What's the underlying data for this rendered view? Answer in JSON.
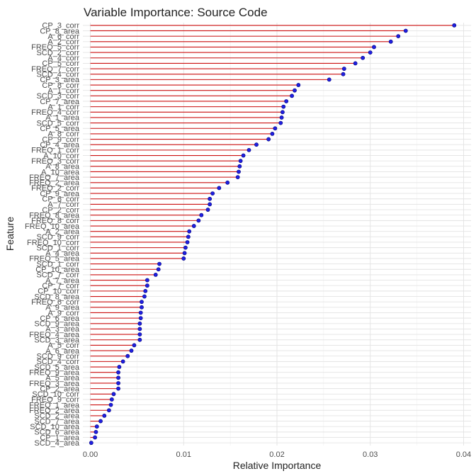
{
  "chart_data": {
    "type": "lollipop",
    "title": "Variable Importance: Source Code",
    "xlabel": "Relative Importance",
    "ylabel": "Feature",
    "xlim": [
      -0.0008,
      0.0408
    ],
    "x_ticks": [
      0,
      0.01,
      0.02,
      0.03,
      0.04
    ],
    "x_tick_labels": [
      "0.00",
      "0.01",
      "0.02",
      "0.03",
      "0.04"
    ],
    "grid": true,
    "colors": {
      "stem": "#cc1111",
      "point": "#1f1fe0"
    },
    "features": [
      "CP_3_corr",
      "CP_8_area",
      "A_6_corr",
      "A_2_corr",
      "FREQ_5_corr",
      "SCD_2_corr",
      "A_4_corr",
      "CP_5_corr",
      "FREQ_7_corr",
      "SCD_4_corr",
      "CP_3_area",
      "CP_8_corr",
      "A_1_corr",
      "SCD_3_corr",
      "CP_7_area",
      "A_1_corr",
      "FREQ_4_corr",
      "A_1_area",
      "SCD_5_corr",
      "CP_5_area",
      "A_8_corr",
      "CP_9_corr",
      "CP_4_area",
      "FREQ_1_corr",
      "A_10_corr",
      "FREQ_3_corr",
      "A_8_area",
      "A_10_area",
      "FREQ_7_area",
      "FREQ_2_area",
      "FREQ_2_corr",
      "CP_9_area",
      "CP_6_corr",
      "A_7_corr",
      "CP_2_corr",
      "FREQ_8_area",
      "FREQ_8_corr",
      "FREQ_10_area",
      "A_2_area",
      "SCD_9_corr",
      "FREQ_10_corr",
      "SCD_1_corr",
      "A_4_area",
      "FREQ_5_area",
      "SCD_1_corr",
      "CP_10_area",
      "SCD_7_corr",
      "A_7_area",
      "CP_7_corr",
      "CP_10_corr",
      "SCD_8_area",
      "FREQ_6_corr",
      "A_9_area",
      "A_9_corr",
      "CP_6_area",
      "SCD_9_area",
      "A_3_area",
      "FREQ_4_area",
      "SCD_3_area",
      "A_5_corr",
      "A_6_area",
      "SCD_9_corr",
      "SCD_4_corr",
      "SCD_5_area",
      "FREQ_9_area",
      "A_5_area",
      "FREQ_3_area",
      "CP_2_area",
      "SCD_10_corr",
      "FREQ_9_corr",
      "FREQ_1_area",
      "FREQ_2_area",
      "SCD_2_area",
      "SCD_7_area",
      "SCD_10_area",
      "SCD_6_area",
      "CP_1_area",
      "SCD_4_area"
    ],
    "values": [
      0.039,
      0.0338,
      0.033,
      0.0322,
      0.0304,
      0.03,
      0.0292,
      0.0284,
      0.0272,
      0.0271,
      0.0256,
      0.0223,
      0.0219,
      0.0216,
      0.021,
      0.0207,
      0.0206,
      0.0205,
      0.0204,
      0.0198,
      0.0195,
      0.0191,
      0.0178,
      0.017,
      0.0164,
      0.0161,
      0.016,
      0.0159,
      0.0158,
      0.0147,
      0.0138,
      0.0131,
      0.0128,
      0.0128,
      0.0126,
      0.0119,
      0.0116,
      0.0111,
      0.0106,
      0.0105,
      0.0104,
      0.0102,
      0.0101,
      0.01,
      0.0074,
      0.0073,
      0.007,
      0.0061,
      0.0061,
      0.0059,
      0.0058,
      0.0055,
      0.0055,
      0.0054,
      0.0054,
      0.0053,
      0.0053,
      0.0053,
      0.0053,
      0.0047,
      0.0044,
      0.004,
      0.0035,
      0.0031,
      0.003,
      0.003,
      0.003,
      0.003,
      0.0025,
      0.0023,
      0.0022,
      0.002,
      0.0015,
      0.0011,
      0.0007,
      0.0006,
      0.0005,
      0.0001
    ]
  }
}
